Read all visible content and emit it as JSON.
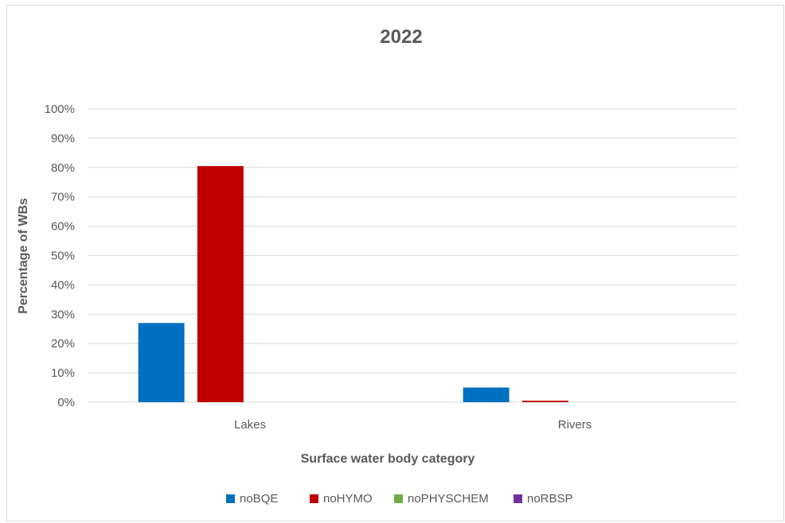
{
  "chart_data": {
    "type": "bar",
    "title": "2022",
    "xlabel": "Surface water body category",
    "ylabel": "Percentage of WBs",
    "categories": [
      "Lakes",
      "Rivers"
    ],
    "ylim": [
      0,
      100
    ],
    "yticks": [
      "0%",
      "10%",
      "20%",
      "30%",
      "40%",
      "50%",
      "60%",
      "70%",
      "80%",
      "90%",
      "100%"
    ],
    "grid": true,
    "legend_position": "bottom",
    "series": [
      {
        "name": "noBQE",
        "color": "#0070c0",
        "values": [
          27,
          5
        ]
      },
      {
        "name": "noHYMO",
        "color": "#c00000",
        "values": [
          80.5,
          0.5
        ]
      },
      {
        "name": "noPHYSCHEM",
        "color": "#70ad47",
        "values": [
          0,
          0
        ]
      },
      {
        "name": "noRBSP",
        "color": "#7030a0",
        "values": [
          0,
          0
        ]
      }
    ]
  }
}
